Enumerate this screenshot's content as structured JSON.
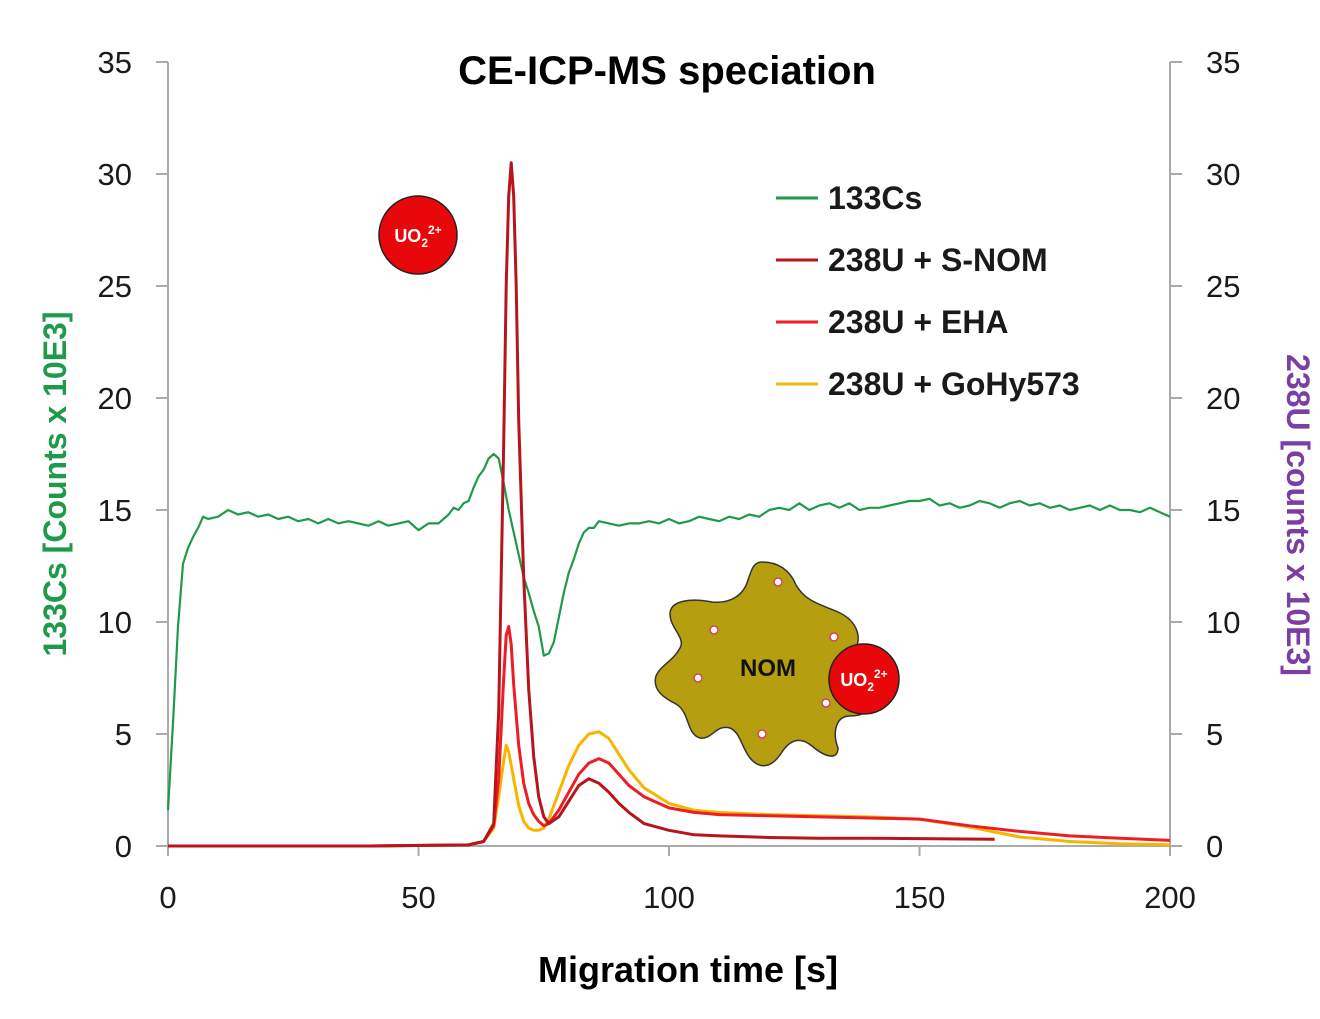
{
  "chart_data": {
    "type": "line",
    "title": "CE-ICP-MS speciation",
    "xlabel": "Migration time [s]",
    "ylabel_left": "133Cs  [Counts x 10E3]",
    "ylabel_right": "238U [counts x 10E3]",
    "xlim": [
      0,
      200
    ],
    "ylim": [
      0,
      35
    ],
    "ylim_right": [
      0,
      35
    ],
    "x_ticks": [
      "0",
      "50",
      "100",
      "150",
      "200"
    ],
    "y_ticks": [
      "0",
      "5",
      "10",
      "15",
      "20",
      "25",
      "30",
      "35"
    ],
    "legend_position": "top-right",
    "series": [
      {
        "name": "133Cs",
        "axis": "left",
        "color": "#1f9a4a",
        "x": [
          0,
          1,
          2,
          3,
          4,
          5,
          6,
          7,
          8,
          10,
          12,
          14,
          16,
          18,
          20,
          22,
          24,
          26,
          28,
          30,
          32,
          34,
          36,
          38,
          40,
          42,
          44,
          46,
          48,
          50,
          52,
          54,
          56,
          57,
          58,
          59,
          60,
          61,
          62,
          63,
          64,
          65,
          66,
          67,
          68,
          69,
          70,
          71,
          72,
          73,
          74,
          75,
          76,
          77,
          78,
          79,
          80,
          81,
          82,
          83,
          84,
          85,
          86,
          88,
          90,
          92,
          94,
          96,
          98,
          100,
          102,
          104,
          106,
          108,
          110,
          112,
          114,
          116,
          118,
          120,
          122,
          124,
          126,
          128,
          130,
          132,
          134,
          136,
          138,
          140,
          142,
          144,
          146,
          148,
          150,
          152,
          154,
          156,
          158,
          160,
          162,
          164,
          166,
          168,
          170,
          172,
          174,
          176,
          178,
          180,
          182,
          184,
          186,
          188,
          190,
          192,
          194,
          196,
          198,
          200
        ],
        "y": [
          1.6,
          5.5,
          9.8,
          12.6,
          13.3,
          13.8,
          14.2,
          14.7,
          14.6,
          14.7,
          15.0,
          14.8,
          14.9,
          14.7,
          14.8,
          14.6,
          14.7,
          14.5,
          14.6,
          14.4,
          14.6,
          14.4,
          14.5,
          14.4,
          14.3,
          14.5,
          14.3,
          14.4,
          14.5,
          14.1,
          14.4,
          14.4,
          14.8,
          15.1,
          15.0,
          15.3,
          15.4,
          16.0,
          16.5,
          16.8,
          17.3,
          17.5,
          17.3,
          16.2,
          15.0,
          14.0,
          13.0,
          12.0,
          11.3,
          10.5,
          9.8,
          8.5,
          8.6,
          9.1,
          10.2,
          11.3,
          12.2,
          12.8,
          13.5,
          14.0,
          14.2,
          14.2,
          14.5,
          14.4,
          14.3,
          14.4,
          14.4,
          14.5,
          14.4,
          14.6,
          14.4,
          14.5,
          14.7,
          14.6,
          14.5,
          14.7,
          14.6,
          14.8,
          14.7,
          15.0,
          15.1,
          15.0,
          15.3,
          15.0,
          15.2,
          15.3,
          15.1,
          15.3,
          15.0,
          15.1,
          15.1,
          15.2,
          15.3,
          15.4,
          15.4,
          15.5,
          15.2,
          15.3,
          15.1,
          15.2,
          15.4,
          15.3,
          15.1,
          15.3,
          15.4,
          15.2,
          15.3,
          15.1,
          15.2,
          15.0,
          15.1,
          15.2,
          15.0,
          15.2,
          15.0,
          15.0,
          14.9,
          15.1,
          14.9,
          14.7
        ]
      },
      {
        "name": "238U + S-NOM",
        "axis": "right",
        "color": "#b8141b",
        "x": [
          0,
          20,
          40,
          60,
          63,
          65,
          66,
          67,
          67.5,
          68,
          68.5,
          69,
          69.5,
          70,
          71,
          72,
          73,
          74,
          75,
          76,
          78,
          80,
          82,
          84,
          86,
          88,
          90,
          92,
          95,
          100,
          105,
          110,
          120,
          130,
          140,
          150,
          165
        ],
        "y": [
          0,
          0,
          0,
          0.05,
          0.2,
          1.0,
          6.0,
          18.0,
          25.0,
          29.0,
          30.5,
          29.0,
          25.0,
          19.0,
          12.0,
          7.0,
          4.0,
          2.2,
          1.3,
          1.0,
          1.3,
          2.0,
          2.7,
          3.0,
          2.8,
          2.4,
          1.9,
          1.5,
          1.0,
          0.7,
          0.5,
          0.45,
          0.38,
          0.35,
          0.35,
          0.33,
          0.3
        ]
      },
      {
        "name": "238U + EHA",
        "axis": "right",
        "color": "#ee1d23",
        "x": [
          0,
          20,
          40,
          60,
          63,
          65,
          66,
          67,
          67.5,
          68,
          68.5,
          69,
          70,
          71,
          72,
          73,
          74,
          75,
          76,
          78,
          80,
          82,
          84,
          86,
          88,
          90,
          92,
          95,
          100,
          105,
          110,
          120,
          130,
          140,
          150,
          160,
          170,
          180,
          190,
          200
        ],
        "y": [
          0,
          0,
          0,
          0.05,
          0.2,
          0.9,
          3.0,
          7.5,
          9.4,
          9.8,
          9.0,
          7.2,
          4.5,
          2.8,
          1.9,
          1.4,
          1.1,
          0.9,
          1.0,
          1.6,
          2.4,
          3.2,
          3.7,
          3.9,
          3.7,
          3.2,
          2.7,
          2.2,
          1.7,
          1.5,
          1.4,
          1.35,
          1.3,
          1.25,
          1.2,
          0.9,
          0.65,
          0.45,
          0.35,
          0.25
        ]
      },
      {
        "name": "238U + GoHy573",
        "axis": "right",
        "color": "#f7b500",
        "x": [
          0,
          20,
          40,
          60,
          63,
          65,
          66,
          67,
          67.5,
          68,
          69,
          70,
          71,
          72,
          73,
          74,
          75,
          76,
          78,
          80,
          82,
          84,
          86,
          88,
          90,
          92,
          95,
          100,
          105,
          110,
          120,
          130,
          140,
          150,
          160,
          170,
          180,
          190,
          200
        ],
        "y": [
          0,
          0,
          0,
          0.05,
          0.2,
          0.8,
          2.2,
          3.8,
          4.5,
          4.2,
          3.0,
          1.8,
          1.1,
          0.8,
          0.7,
          0.7,
          0.8,
          1.2,
          2.4,
          3.6,
          4.5,
          5.0,
          5.1,
          4.8,
          4.1,
          3.4,
          2.6,
          1.9,
          1.6,
          1.5,
          1.4,
          1.35,
          1.3,
          1.2,
          0.85,
          0.4,
          0.2,
          0.1,
          0.05
        ]
      }
    ],
    "annotations": {
      "free_ion": "UO22+",
      "nom_label": "NOM",
      "bound_ion": "UO22+"
    },
    "ion_formula": {
      "base": "UO",
      "sub": "2",
      "sup": "2+"
    }
  },
  "colors": {
    "cs_axis": "#1f9a4a",
    "u_axis": "#7b3ea4",
    "ion_fill": "#e8080c",
    "nom_fill": "#b59f11"
  }
}
